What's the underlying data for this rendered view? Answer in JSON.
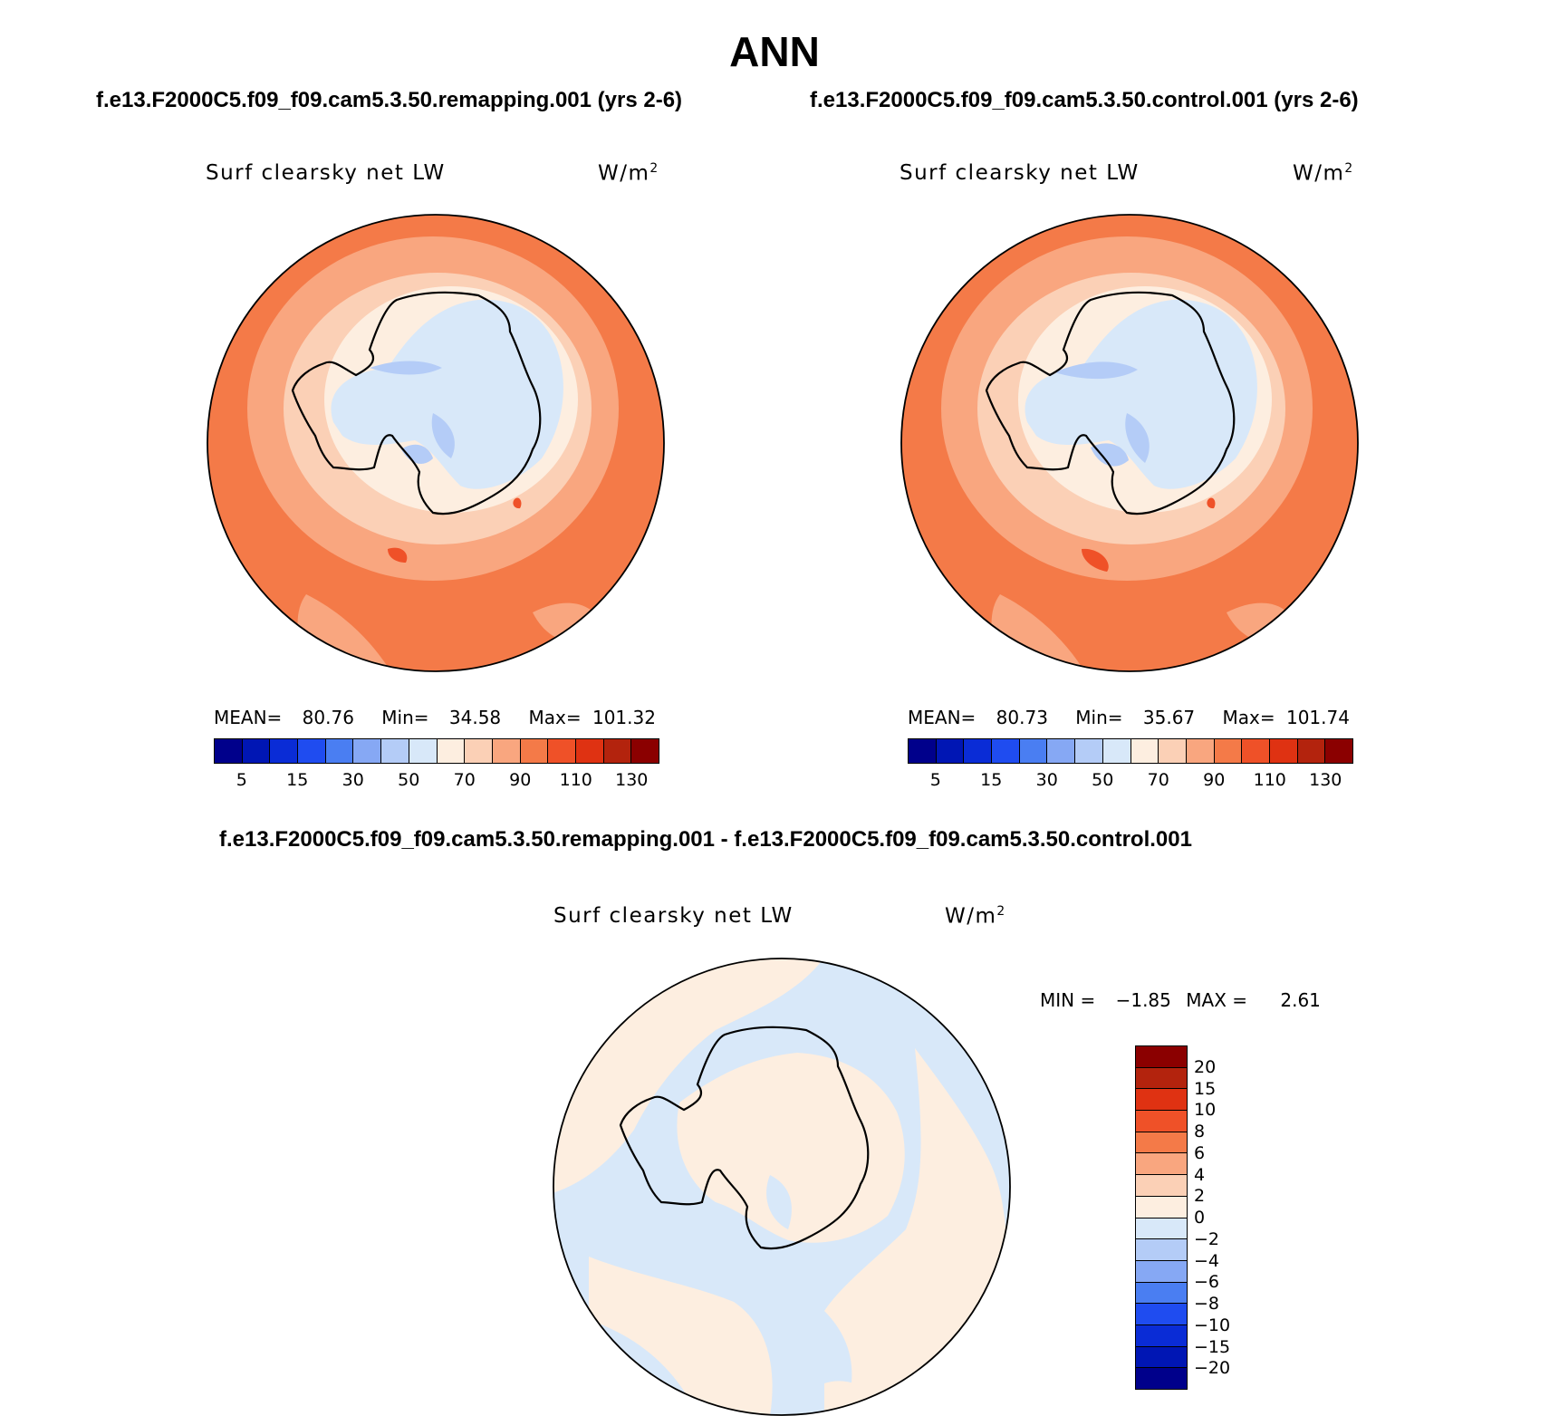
{
  "title": "ANN",
  "panels": {
    "left": {
      "case": "f.e13.F2000C5.f09_f09.cam5.3.50.remapping.001 (yrs 2-6)",
      "variable": "Surf clearsky net LW",
      "units_base": "W/m",
      "units_exp": "2",
      "mean_label": "MEAN=",
      "mean": "80.76",
      "min_label": "Min=",
      "min": "34.58",
      "max_label": "Max=",
      "max": "101.32"
    },
    "right": {
      "case": "f.e13.F2000C5.f09_f09.cam5.3.50.control.001 (yrs 2-6)",
      "variable": "Surf clearsky net LW",
      "units_base": "W/m",
      "units_exp": "2",
      "mean_label": "MEAN=",
      "mean": "80.73",
      "min_label": "Min=",
      "min": "35.67",
      "max_label": "Max=",
      "max": "101.74"
    },
    "diff": {
      "case": "f.e13.F2000C5.f09_f09.cam5.3.50.remapping.001 - f.e13.F2000C5.f09_f09.cam5.3.50.control.001",
      "variable": "Surf clearsky net LW",
      "units_base": "W/m",
      "units_exp": "2",
      "min_label": "MIN =",
      "min": "−1.85",
      "max_label": "MAX =",
      "max": "2.61"
    }
  },
  "colorbar_main": {
    "colors": [
      "#00008b",
      "#0016b4",
      "#0a2cd6",
      "#1f4cf0",
      "#4a7ef2",
      "#86a8f4",
      "#b4ccf7",
      "#d8e8f9",
      "#fdeee0",
      "#fbd0b6",
      "#f9a67f",
      "#f47a48",
      "#ef5128",
      "#df3212",
      "#b3230d",
      "#8b0000"
    ],
    "labels": [
      "5",
      "15",
      "30",
      "50",
      "70",
      "90",
      "110",
      "130"
    ]
  },
  "colorbar_diff": {
    "colors": [
      "#00008b",
      "#0016b4",
      "#0a2cd6",
      "#1f4cf0",
      "#4a7ef2",
      "#86a8f4",
      "#b4ccf7",
      "#d8e8f9",
      "#fdeee0",
      "#fbd0b6",
      "#f9a67f",
      "#f47a48",
      "#ef5128",
      "#df3212",
      "#b3230d",
      "#8b0000"
    ],
    "labels": [
      "−20",
      "−15",
      "−10",
      "−8",
      "−6",
      "−4",
      "−2",
      "0",
      "2",
      "4",
      "6",
      "8",
      "10",
      "15",
      "20"
    ]
  }
}
